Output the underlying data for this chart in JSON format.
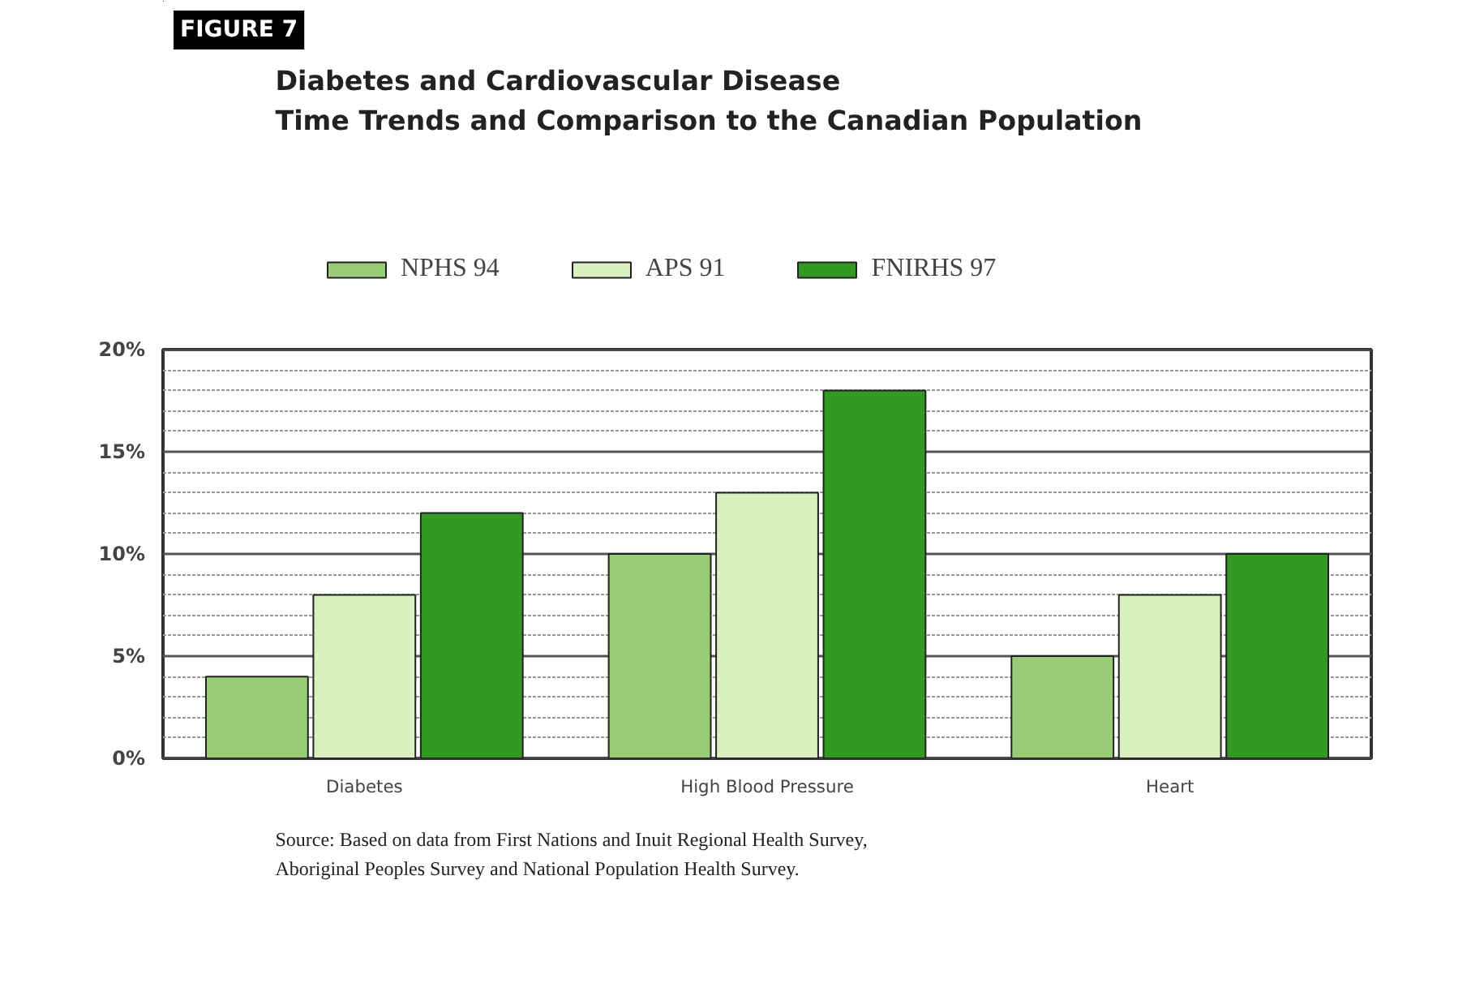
{
  "chart_data": {
    "type": "bar",
    "title": "Diabetes and Cardiovascular Disease\nTime Trends and Comparison to the Canadian Population",
    "categories": [
      "Diabetes",
      "High Blood Pressure",
      "Heart"
    ],
    "series": [
      {
        "name": "NPHS 94",
        "color": "#99cc77",
        "values": [
          4,
          10,
          5
        ]
      },
      {
        "name": "APS 91",
        "color": "#d9f0bf",
        "values": [
          8,
          13,
          8
        ]
      },
      {
        "name": "FNIRHS 97",
        "color": "#339922",
        "values": [
          12,
          18,
          10
        ]
      }
    ],
    "ylim": [
      0,
      20
    ],
    "yticks": [
      {
        "value": 0,
        "label": "0%"
      },
      {
        "value": 1,
        "label": null
      },
      {
        "value": 2,
        "label": null
      },
      {
        "value": 3,
        "label": null
      },
      {
        "value": 4,
        "label": null
      },
      {
        "value": 5,
        "label": "5%"
      },
      {
        "value": 6,
        "label": null
      },
      {
        "value": 7,
        "label": null
      },
      {
        "value": 8,
        "label": null
      },
      {
        "value": 9,
        "label": null
      },
      {
        "value": 10,
        "label": "10%"
      },
      {
        "value": 11,
        "label": null
      },
      {
        "value": 12,
        "label": null
      },
      {
        "value": 13,
        "label": null
      },
      {
        "value": 14,
        "label": null
      },
      {
        "value": 15,
        "label": "15%"
      },
      {
        "value": 16,
        "label": null
      },
      {
        "value": 17,
        "label": null
      },
      {
        "value": 18,
        "label": null
      },
      {
        "value": 19,
        "label": null
      },
      {
        "value": 20,
        "label": "20%"
      }
    ],
    "grid": "y",
    "legend": "top",
    "annotations": [
      "FIGURE 7",
      "Source: Based on data from First Nations and Inuit Regional Health Survey,\nAboriginal Peoples Survey and National Population Health Survey."
    ]
  }
}
